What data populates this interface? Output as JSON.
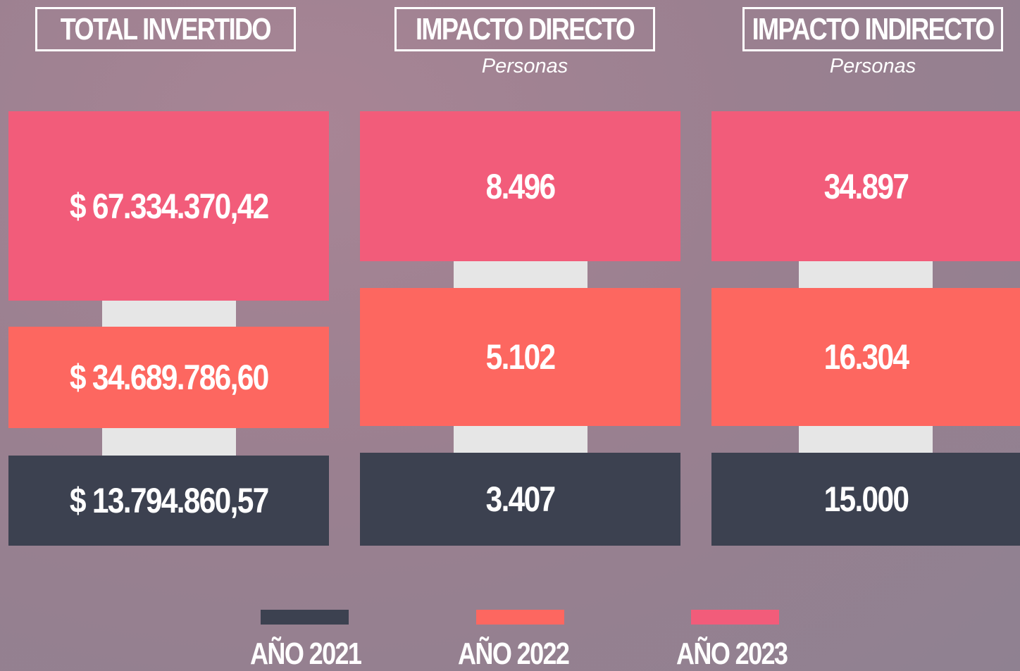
{
  "columns": [
    {
      "title": "TOTAL INVERTIDO",
      "values": [
        "$ 67.334.370,42",
        "$ 34.689.786,60",
        "$ 13.794.860,57"
      ]
    },
    {
      "title": "IMPACTO DIRECTO",
      "subtitle": "Personas",
      "values": [
        "8.496",
        "5.102",
        "3.407"
      ]
    },
    {
      "title": "IMPACTO INDIRECTO",
      "subtitle": "Personas",
      "values": [
        "34.897",
        "16.304",
        "15.000"
      ]
    }
  ],
  "legend": [
    {
      "label": "AÑO 2021",
      "color": "#3c4150"
    },
    {
      "label": "AÑO 2022",
      "color": "#fd6760"
    },
    {
      "label": "AÑO 2023",
      "color": "#f25c7a"
    }
  ]
}
